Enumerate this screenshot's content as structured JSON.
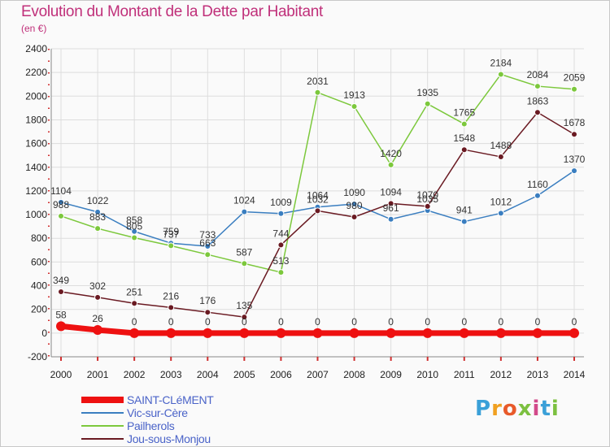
{
  "title": "Evolution du Montant de la Dette par Habitant",
  "subtitle": "(en €)",
  "brand": {
    "letters": [
      "P",
      "r",
      "o",
      "x",
      "i",
      "t",
      "i"
    ],
    "colors": [
      "#3aa0d8",
      "#f0a020",
      "#e85a2a",
      "#7cc040",
      "#d24a8a",
      "#3aa0d8",
      "#7cc040"
    ]
  },
  "chart_data": {
    "type": "line",
    "title": "Evolution du Montant de la Dette par Habitant",
    "subtitle": "(en €)",
    "xlabel": "",
    "ylabel": "",
    "x": [
      "2000",
      "2001",
      "2002",
      "2003",
      "2004",
      "2005",
      "2006",
      "2007",
      "2008",
      "2009",
      "2010",
      "2011",
      "2012",
      "2013",
      "2014"
    ],
    "ylim": [
      -200,
      2400
    ],
    "yticks": [
      -200,
      0,
      200,
      400,
      600,
      800,
      1000,
      1200,
      1400,
      1600,
      1800,
      2000,
      2200,
      2400
    ],
    "grid": true,
    "legend": "bottom-left",
    "series": [
      {
        "name": "SAINT-CLéMENT",
        "color": "#ee1111",
        "values": [
          58,
          26,
          0,
          0,
          0,
          0,
          0,
          0,
          0,
          0,
          0,
          0,
          0,
          0,
          0
        ]
      },
      {
        "name": "Vic-sur-Cère",
        "color": "#3a7ec0",
        "values": [
          1104,
          1022,
          858,
          759,
          733,
          1024,
          1009,
          1064,
          1090,
          961,
          1035,
          941,
          1012,
          1160,
          1370
        ]
      },
      {
        "name": "Pailherols",
        "color": "#7cc83c",
        "values": [
          988,
          883,
          805,
          737,
          663,
          587,
          513,
          2031,
          1913,
          1420,
          1935,
          1765,
          2184,
          2084,
          2059
        ]
      },
      {
        "name": "Jou-sous-Monjou",
        "color": "#6a1a22",
        "values": [
          349,
          302,
          251,
          216,
          176,
          135,
          744,
          1032,
          980,
          1094,
          1070,
          1548,
          1488,
          1863,
          1678
        ]
      }
    ]
  }
}
